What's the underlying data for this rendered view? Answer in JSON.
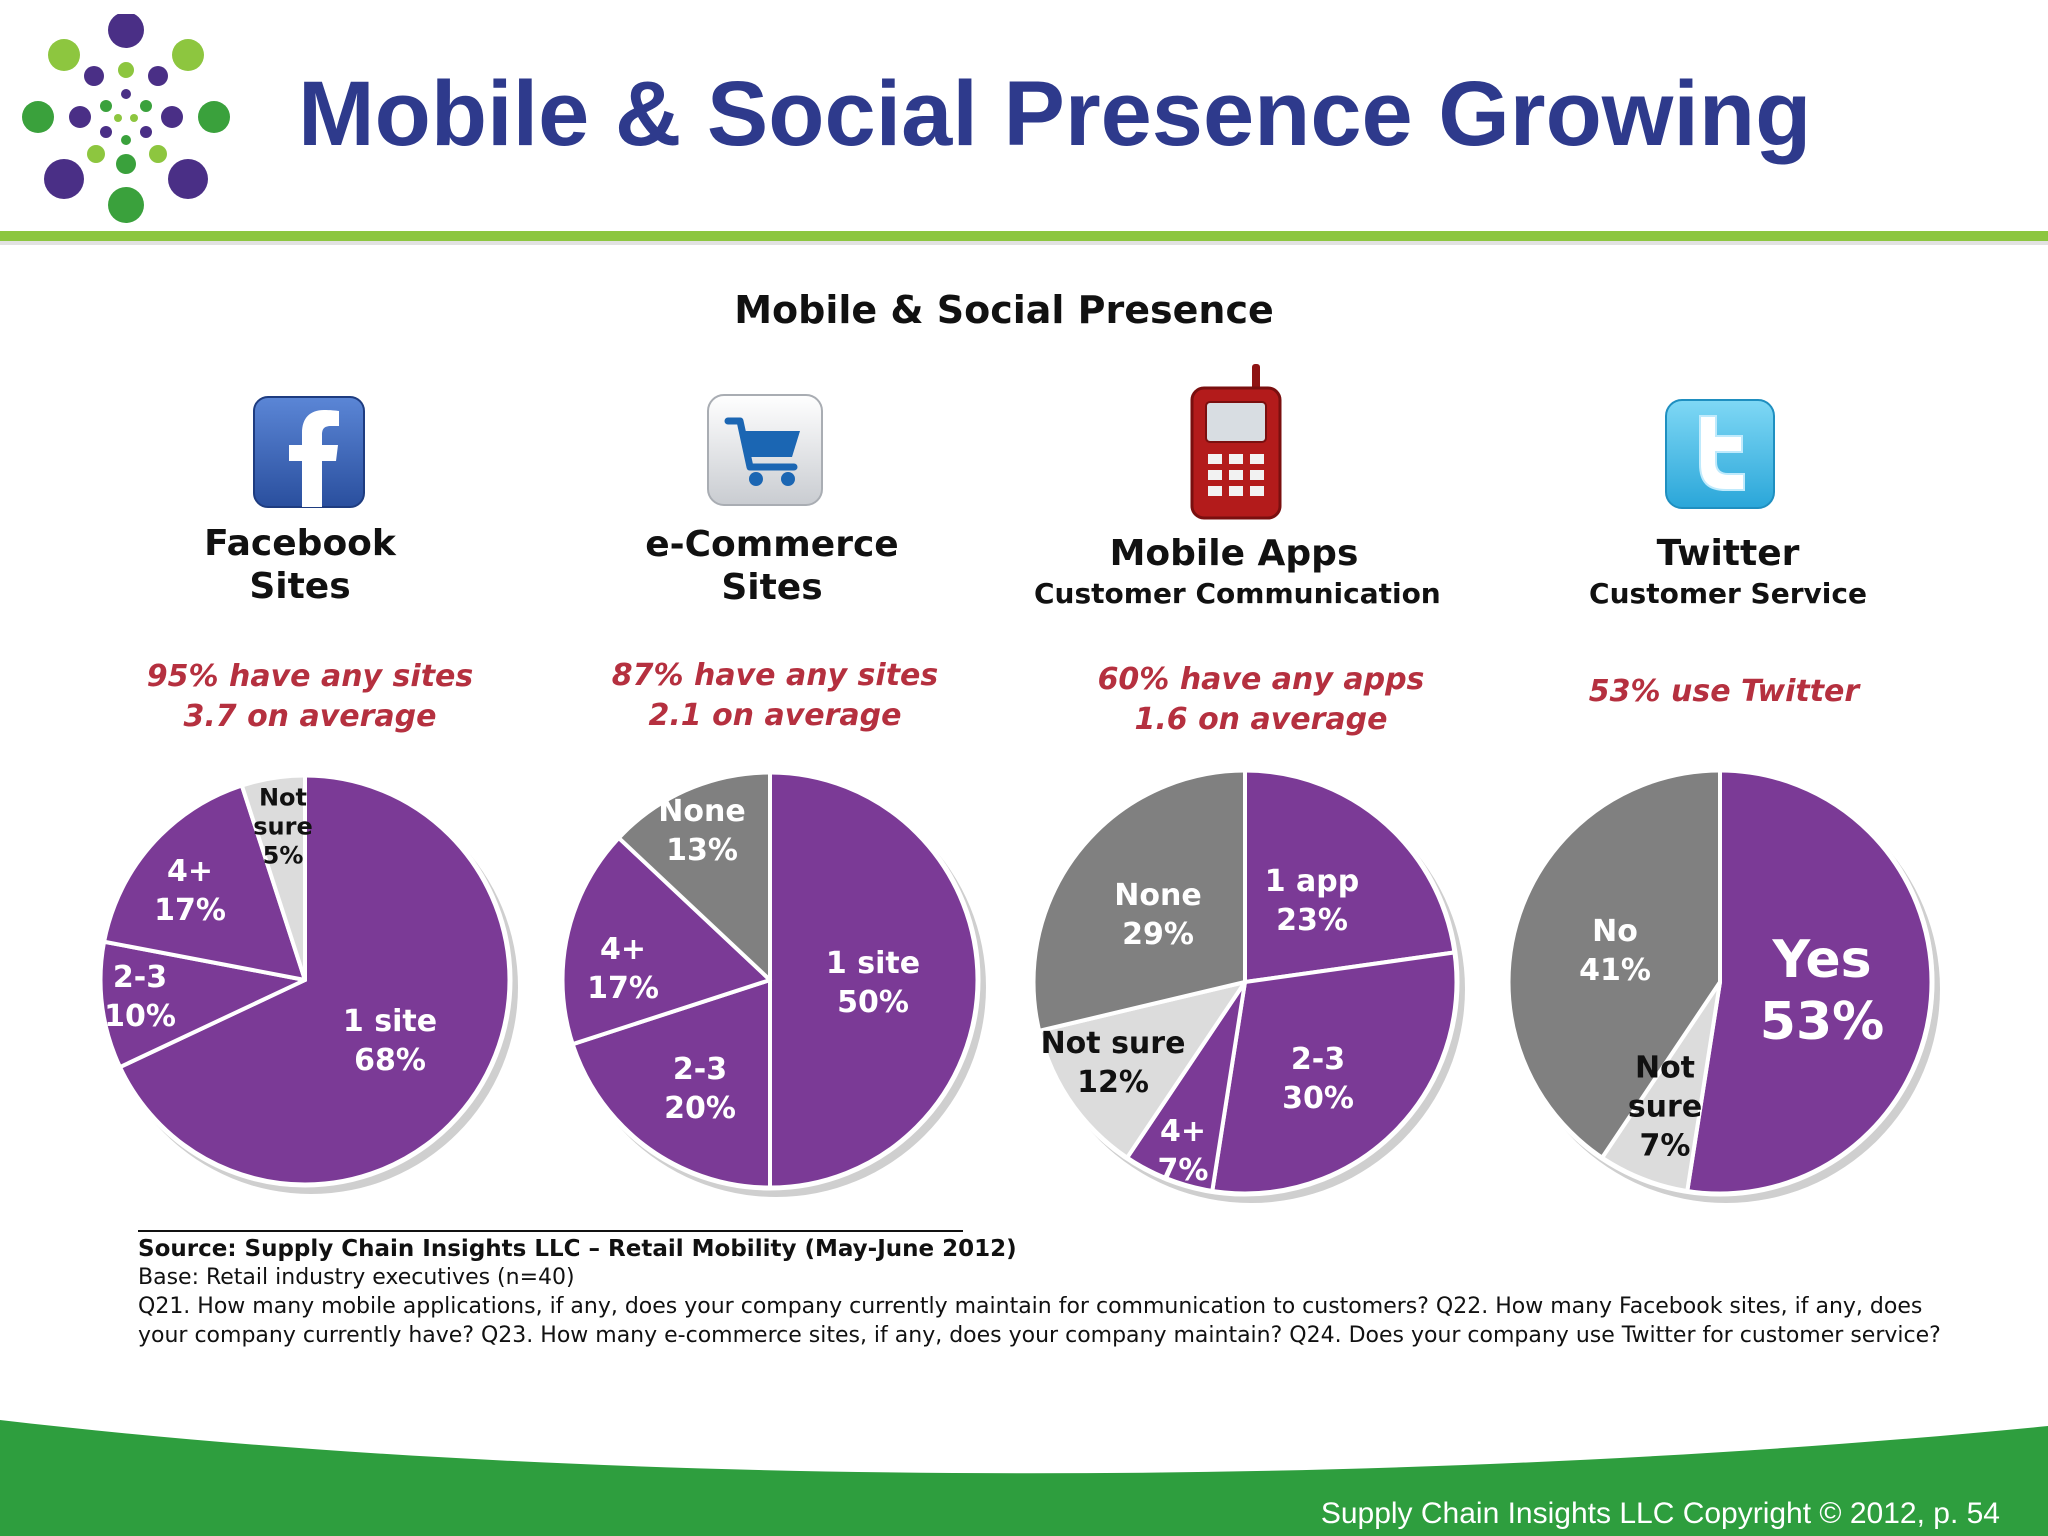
{
  "slide": {
    "title": "Mobile & Social Presence Growing",
    "footer": "Supply Chain Insights LLC Copyright © 2012, p. 54"
  },
  "colors": {
    "title_blue": "#2e3a8c",
    "purple": "#7b3a96",
    "gray": "#808080",
    "light_gray": "#dcdcdc",
    "note_red": "#b5303f",
    "rule_green": "#8cc63f",
    "footer_green": "#2e9e3e"
  },
  "chart_data": {
    "type": "pie",
    "title": "Mobile & Social Presence",
    "panels": [
      {
        "icon": "facebook-icon",
        "title": "Facebook\nSites",
        "subtitle": "",
        "note_lines": [
          "95% have any sites",
          "3.7 on average"
        ],
        "slices": [
          {
            "label": "1 site",
            "value": 68,
            "display": "68%",
            "color": "#7b3a96",
            "text_color": "#ffffff"
          },
          {
            "label": "2-3",
            "value": 10,
            "display": "10%",
            "color": "#7b3a96",
            "text_color": "#ffffff"
          },
          {
            "label": "4+",
            "value": 17,
            "display": "17%",
            "color": "#7b3a96",
            "text_color": "#ffffff"
          },
          {
            "label": "Not\nsure",
            "value": 5,
            "display": "5%",
            "color": "#dcdcdc",
            "text_color": "#111111"
          }
        ]
      },
      {
        "icon": "shopping-cart-icon",
        "title": "e-Commerce\nSites",
        "subtitle": "",
        "note_lines": [
          "87% have any sites",
          "2.1 on average"
        ],
        "slices": [
          {
            "label": "1 site",
            "value": 50,
            "display": "50%",
            "color": "#7b3a96",
            "text_color": "#ffffff"
          },
          {
            "label": "2-3",
            "value": 20,
            "display": "20%",
            "color": "#7b3a96",
            "text_color": "#ffffff"
          },
          {
            "label": "4+",
            "value": 17,
            "display": "17%",
            "color": "#7b3a96",
            "text_color": "#ffffff"
          },
          {
            "label": "None",
            "value": 13,
            "display": "13%",
            "color": "#808080",
            "text_color": "#ffffff"
          }
        ]
      },
      {
        "icon": "mobile-phone-icon",
        "title": "Mobile Apps",
        "subtitle": "Customer Communication",
        "note_lines": [
          "60% have any apps",
          "1.6 on average"
        ],
        "slices": [
          {
            "label": "1 app",
            "value": 23,
            "display": "23%",
            "color": "#7b3a96",
            "text_color": "#ffffff"
          },
          {
            "label": "2-3",
            "value": 30,
            "display": "30%",
            "color": "#7b3a96",
            "text_color": "#ffffff"
          },
          {
            "label": "4+",
            "value": 7,
            "display": "7%",
            "color": "#7b3a96",
            "text_color": "#ffffff"
          },
          {
            "label": "Not sure",
            "value": 12,
            "display": "12%",
            "color": "#dcdcdc",
            "text_color": "#111111"
          },
          {
            "label": "None",
            "value": 29,
            "display": "29%",
            "color": "#808080",
            "text_color": "#ffffff"
          }
        ]
      },
      {
        "icon": "twitter-icon",
        "title": "Twitter",
        "subtitle": "Customer Service",
        "note_lines": [
          "53% use Twitter"
        ],
        "slices": [
          {
            "label": "Yes",
            "value": 53,
            "display": "53%",
            "color": "#7b3a96",
            "text_color": "#ffffff",
            "emphasis": true
          },
          {
            "label": "Not\nsure",
            "value": 7,
            "display": "7%",
            "color": "#dcdcdc",
            "text_color": "#111111"
          },
          {
            "label": "No",
            "value": 41,
            "display": "41%",
            "color": "#808080",
            "text_color": "#ffffff"
          }
        ]
      }
    ]
  },
  "source": {
    "heading": "Source: Supply Chain Insights LLC – Retail Mobility (May-June 2012)",
    "base": "Base:  Retail industry executives (n=40)",
    "questions_line1": "Q21. How many mobile applications, if any, does your company currently maintain for communication to customers?   Q22. How many Facebook sites, if any, does",
    "questions_line2": "your company currently have?   Q23. How many e-commerce sites, if any, does your company maintain?  Q24. Does your company use Twitter for customer service?"
  }
}
